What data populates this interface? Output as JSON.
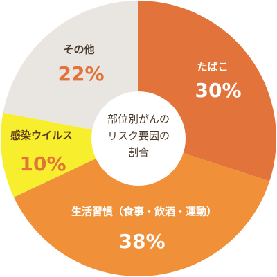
{
  "chart_data": {
    "type": "donut",
    "title": "部位別がんの\nリスク要因の\n割合",
    "categories": [
      "たばこ",
      "生活習慣（食事・飲酒・運動）",
      "感染ウイルス",
      "その他"
    ],
    "values": [
      30,
      38,
      10,
      22
    ],
    "value_labels": [
      "30%",
      "38%",
      "10%",
      "22%"
    ],
    "colors": [
      "#e2733a",
      "#f09038",
      "#f7ef2e",
      "#e9e5e1"
    ]
  }
}
